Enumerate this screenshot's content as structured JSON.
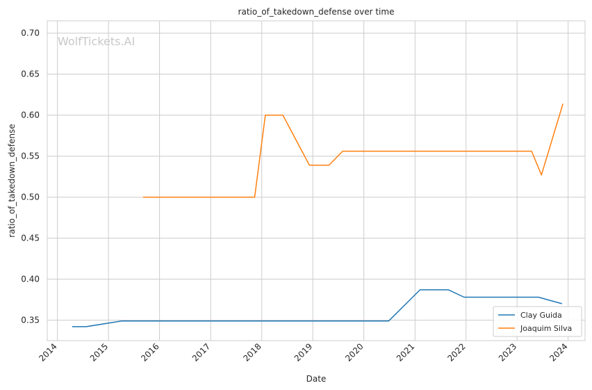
{
  "chart_data": {
    "type": "line",
    "title": "ratio_of_takedown_defense over time",
    "xlabel": "Date",
    "ylabel": "ratio_of_takedown_defense",
    "watermark": "WolfTickets.AI",
    "xlim": [
      "2013-10-20",
      "2024-05-01"
    ],
    "ylim": [
      0.325,
      0.715
    ],
    "x_ticks": [
      "2014-01-01",
      "2015-01-01",
      "2016-01-01",
      "2017-01-01",
      "2018-01-01",
      "2019-01-01",
      "2020-01-01",
      "2021-01-01",
      "2022-01-01",
      "2023-01-01",
      "2024-01-01"
    ],
    "x_tick_labels": [
      "2014",
      "2015",
      "2016",
      "2017",
      "2018",
      "2019",
      "2020",
      "2021",
      "2022",
      "2023",
      "2024"
    ],
    "y_ticks": [
      0.35,
      0.4,
      0.45,
      0.5,
      0.55,
      0.6,
      0.65,
      0.7
    ],
    "y_tick_labels": [
      "0.35",
      "0.40",
      "0.45",
      "0.50",
      "0.55",
      "0.60",
      "0.65",
      "0.70"
    ],
    "grid": true,
    "legend_position": "bottom-right",
    "series": [
      {
        "name": "Clay Guida",
        "color": "#1f77b4",
        "points": [
          [
            "2014-04-16",
            0.342
          ],
          [
            "2014-07-26",
            0.342
          ],
          [
            "2015-04-04",
            0.349
          ],
          [
            "2020-06-27",
            0.349
          ],
          [
            "2021-02-06",
            0.387
          ],
          [
            "2021-08-28",
            0.387
          ],
          [
            "2021-12-18",
            0.378
          ],
          [
            "2023-06-03",
            0.378
          ],
          [
            "2023-11-18",
            0.37
          ]
        ]
      },
      {
        "name": "Joaquim Silva",
        "color": "#ff7f0e",
        "points": [
          [
            "2015-09-05",
            0.5
          ],
          [
            "2017-11-11",
            0.5
          ],
          [
            "2018-01-27",
            0.6
          ],
          [
            "2018-06-01",
            0.6
          ],
          [
            "2018-12-08",
            0.539
          ],
          [
            "2019-04-27",
            0.539
          ],
          [
            "2019-08-03",
            0.556
          ],
          [
            "2023-04-15",
            0.556
          ],
          [
            "2023-06-24",
            0.527
          ],
          [
            "2023-11-25",
            0.614
          ]
        ]
      }
    ]
  }
}
